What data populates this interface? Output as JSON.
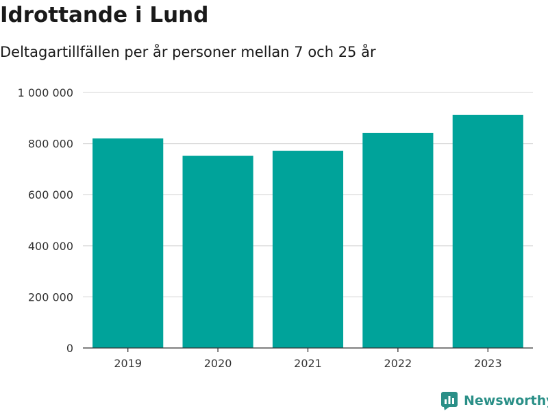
{
  "header": {
    "title": "Idrottande i Lund",
    "subtitle": "Deltagartillfällen per år personer mellan 7 och 25 år"
  },
  "brand": {
    "name": "Newsworthy",
    "icon": "newsworthy-logo-icon",
    "color": "#2a8f87"
  },
  "colors": {
    "bar": "#00a39a",
    "grid": "#dddddd",
    "axis": "#333333",
    "tick_text": "#333333"
  },
  "chart_data": {
    "type": "bar",
    "title": "Idrottande i Lund",
    "subtitle": "Deltagartillfällen per år personer mellan 7 och 25 år",
    "categories": [
      "2019",
      "2020",
      "2021",
      "2022",
      "2023"
    ],
    "values": [
      820000,
      752000,
      772000,
      842000,
      912000
    ],
    "ylim": [
      0,
      1000000
    ],
    "yticks": [
      0,
      200000,
      400000,
      600000,
      800000,
      1000000
    ],
    "ytick_labels": [
      "0",
      "200 000",
      "400 000",
      "600 000",
      "800 000",
      "1 000 000"
    ],
    "xlabel": "",
    "ylabel": "",
    "grid": true,
    "legend": "none"
  }
}
